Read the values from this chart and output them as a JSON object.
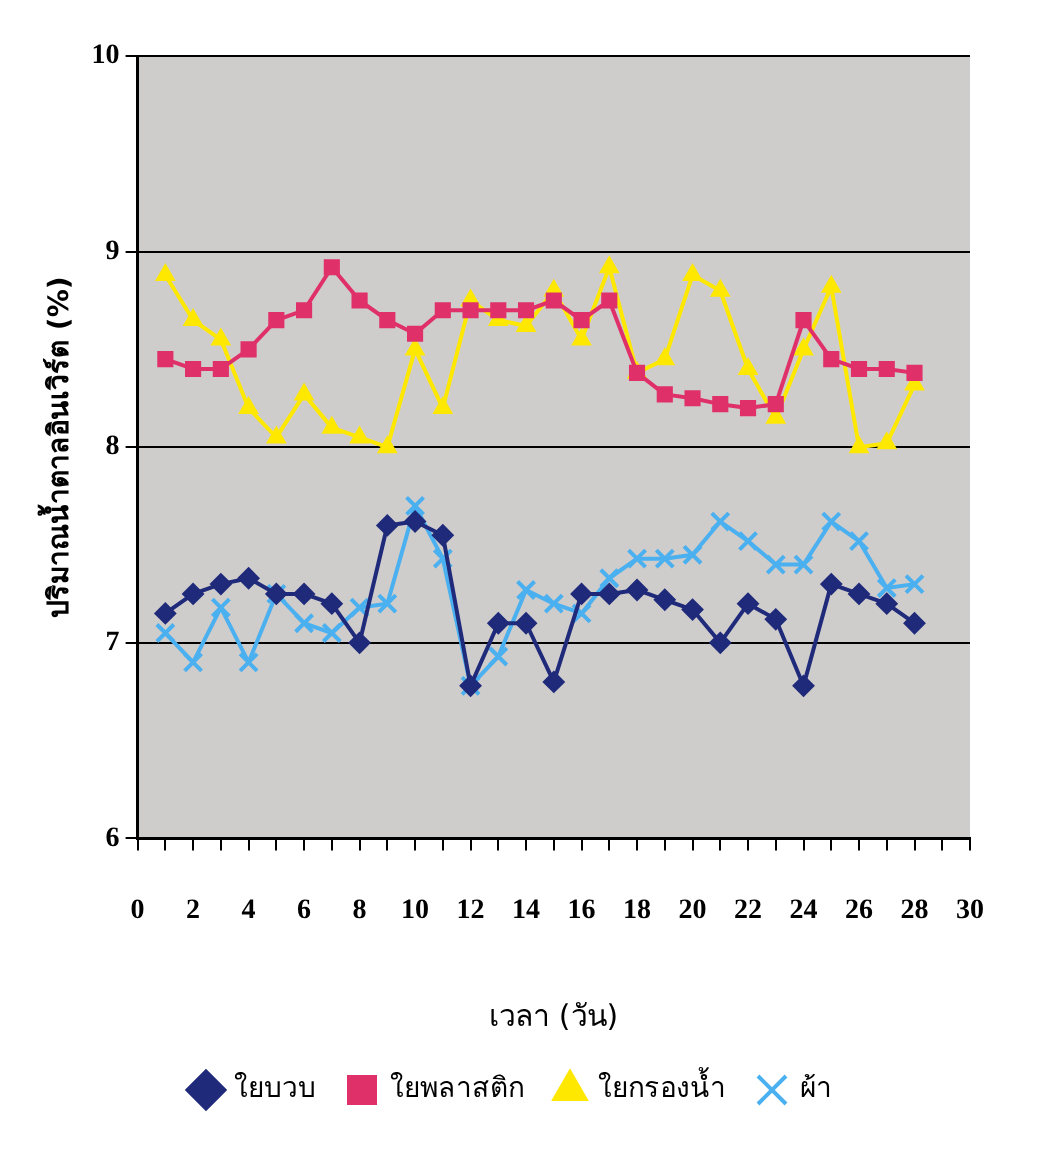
{
  "chart_data": {
    "type": "line",
    "xlabel": "เวลา (วัน)",
    "ylabel": "ปริมาณน้ำตาลอินเวิร์ต (%)",
    "x": [
      1,
      2,
      3,
      4,
      5,
      6,
      7,
      8,
      9,
      10,
      11,
      12,
      13,
      14,
      15,
      16,
      17,
      18,
      19,
      20,
      21,
      22,
      23,
      24,
      25,
      26,
      27,
      28
    ],
    "series": [
      {
        "name": "ใยบวบ",
        "color": "#1f2a7a",
        "marker": "diamond",
        "values": [
          7.15,
          7.25,
          7.3,
          7.33,
          7.25,
          7.25,
          7.2,
          7.0,
          7.6,
          7.62,
          7.55,
          6.78,
          7.1,
          7.1,
          6.8,
          7.25,
          7.25,
          7.27,
          7.22,
          7.17,
          7.0,
          7.2,
          7.12,
          6.78,
          7.3,
          7.25,
          7.2,
          7.1
        ]
      },
      {
        "name": "ใยพลาสติก",
        "color": "#e0306a",
        "marker": "square",
        "values": [
          8.45,
          8.4,
          8.4,
          8.5,
          8.65,
          8.7,
          8.92,
          8.75,
          8.65,
          8.58,
          8.7,
          8.7,
          8.7,
          8.7,
          8.75,
          8.65,
          8.75,
          8.38,
          8.27,
          8.25,
          8.22,
          8.2,
          8.22,
          8.65,
          8.45,
          8.4,
          8.4,
          8.38
        ]
      },
      {
        "name": "ใยกรองน้ำ",
        "color": "#ffe800",
        "marker": "triangle",
        "values": [
          8.88,
          8.65,
          8.55,
          8.2,
          8.05,
          8.27,
          8.1,
          8.05,
          8.0,
          8.5,
          8.2,
          8.75,
          8.65,
          8.62,
          8.8,
          8.55,
          8.92,
          8.38,
          8.45,
          8.88,
          8.8,
          8.4,
          8.15,
          8.5,
          8.82,
          8.0,
          8.02,
          8.32
        ]
      },
      {
        "name": "ผ้า",
        "color": "#4ab0f0",
        "marker": "cross",
        "values": [
          7.05,
          6.9,
          7.18,
          6.9,
          7.25,
          7.1,
          7.05,
          7.18,
          7.2,
          7.7,
          7.43,
          6.78,
          6.93,
          7.27,
          7.2,
          7.15,
          7.33,
          7.43,
          7.43,
          7.45,
          7.62,
          7.52,
          7.4,
          7.4,
          7.62,
          7.52,
          7.28,
          7.3
        ]
      }
    ],
    "xlim": [
      0,
      30
    ],
    "xticks": [
      0,
      {
        "value": 1,
        "label": null
      },
      2,
      {
        "value": 3,
        "label": null
      },
      4,
      {
        "value": 5,
        "label": null
      },
      6,
      {
        "value": 7,
        "label": null
      },
      8,
      {
        "value": 9,
        "label": null
      },
      10,
      {
        "value": 11,
        "label": null
      },
      12,
      {
        "value": 13,
        "label": null
      },
      14,
      {
        "value": 15,
        "label": null
      },
      16,
      {
        "value": 17,
        "label": null
      },
      18,
      {
        "value": 19,
        "label": null
      },
      20,
      {
        "value": 21,
        "label": null
      },
      22,
      {
        "value": 23,
        "label": null
      },
      24,
      {
        "value": 25,
        "label": null
      },
      26,
      {
        "value": 27,
        "label": null
      },
      28,
      {
        "value": 29,
        "label": null
      },
      30
    ],
    "ylim": [
      6,
      10
    ],
    "yticks": [
      6,
      7,
      8,
      9,
      10
    ],
    "grid": "y",
    "legend": "bottom"
  }
}
